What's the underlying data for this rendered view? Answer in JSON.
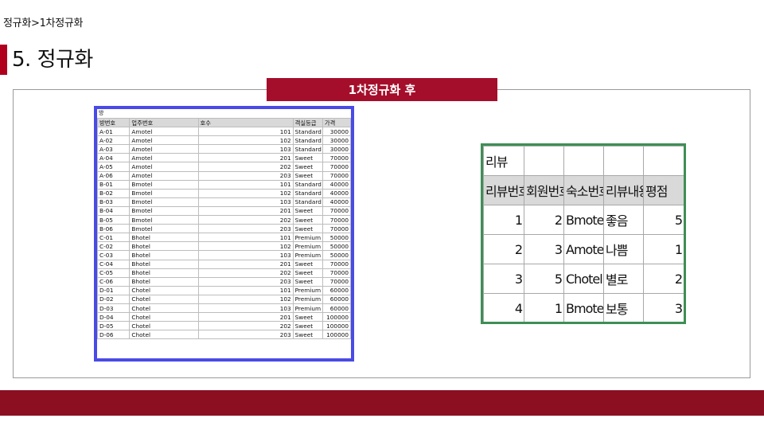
{
  "breadcrumb": "정규화>1차정규화",
  "page_title": "5. 정규화",
  "banner": "1차정규화 후",
  "room_table": {
    "caption": "방",
    "headers": [
      "방번호",
      "업주번호",
      "호수",
      "객실등급",
      "가격"
    ],
    "rows": [
      [
        "A-01",
        "Amotel",
        "101",
        "Standard",
        "30000"
      ],
      [
        "A-02",
        "Amotel",
        "102",
        "Standard",
        "30000"
      ],
      [
        "A-03",
        "Amotel",
        "103",
        "Standard",
        "30000"
      ],
      [
        "A-04",
        "Amotel",
        "201",
        "Sweet",
        "70000"
      ],
      [
        "A-05",
        "Amotel",
        "202",
        "Sweet",
        "70000"
      ],
      [
        "A-06",
        "Amotel",
        "203",
        "Sweet",
        "70000"
      ],
      [
        "B-01",
        "Bmotel",
        "101",
        "Standard",
        "40000"
      ],
      [
        "B-02",
        "Bmotel",
        "102",
        "Standard",
        "40000"
      ],
      [
        "B-03",
        "Bmotel",
        "103",
        "Standard",
        "40000"
      ],
      [
        "B-04",
        "Bmotel",
        "201",
        "Sweet",
        "70000"
      ],
      [
        "B-05",
        "Bmotel",
        "202",
        "Sweet",
        "70000"
      ],
      [
        "B-06",
        "Bmotel",
        "203",
        "Sweet",
        "70000"
      ],
      [
        "C-01",
        "Bhotel",
        "101",
        "Premium",
        "50000"
      ],
      [
        "C-02",
        "Bhotel",
        "102",
        "Premium",
        "50000"
      ],
      [
        "C-03",
        "Bhotel",
        "103",
        "Premium",
        "50000"
      ],
      [
        "C-04",
        "Bhotel",
        "201",
        "Sweet",
        "70000"
      ],
      [
        "C-05",
        "Bhotel",
        "202",
        "Sweet",
        "70000"
      ],
      [
        "C-06",
        "Bhotel",
        "203",
        "Sweet",
        "70000"
      ],
      [
        "D-01",
        "Chotel",
        "101",
        "Premium",
        "60000"
      ],
      [
        "D-02",
        "Chotel",
        "102",
        "Premium",
        "60000"
      ],
      [
        "D-03",
        "Chotel",
        "103",
        "Premium",
        "60000"
      ],
      [
        "D-04",
        "Chotel",
        "201",
        "Sweet",
        "100000"
      ],
      [
        "D-05",
        "Chotel",
        "202",
        "Sweet",
        "100000"
      ],
      [
        "D-06",
        "Chotel",
        "203",
        "Sweet",
        "100000"
      ]
    ]
  },
  "review_table": {
    "caption": "리뷰",
    "headers": [
      "리뷰번호",
      "회원번호",
      "숙소번호",
      "리뷰내용",
      "평점"
    ],
    "rows": [
      [
        "1",
        "2",
        "Bmotel",
        "좋음",
        "5"
      ],
      [
        "2",
        "3",
        "Amotel",
        "나쁨",
        "1"
      ],
      [
        "3",
        "5",
        "Chotel",
        "별로",
        "2"
      ],
      [
        "4",
        "1",
        "Bmotel",
        "보통",
        "3"
      ]
    ]
  },
  "colors": {
    "accent_red": "#b0001e",
    "banner_red": "#a50e2b",
    "footer_red": "#8b0f20",
    "room_border": "#4a4ae6",
    "review_border": "#3e8f55",
    "header_gray": "#d9d9d9"
  }
}
